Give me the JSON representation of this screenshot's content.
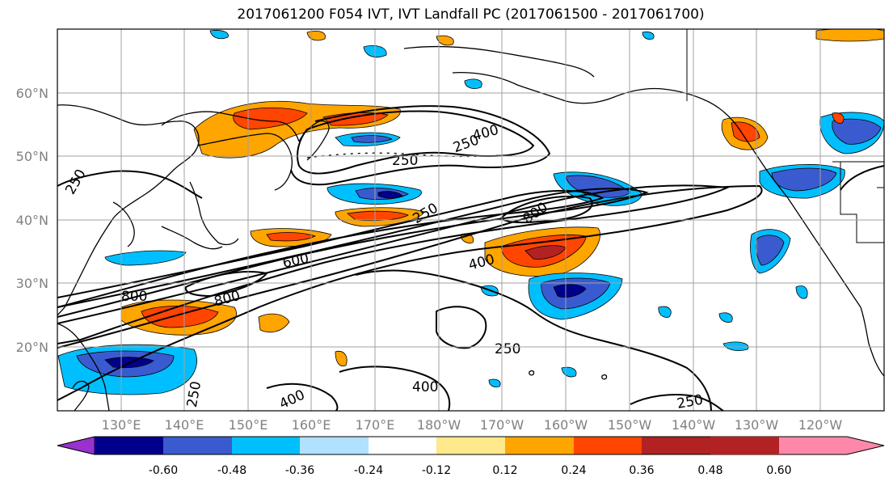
{
  "title": "2017061200 F054 IVT, IVT Landfall PC (2017061500 - 2017061700)",
  "lat_labels": [
    "60°N",
    "50°N",
    "40°N",
    "30°N",
    "20°N"
  ],
  "lon_labels": [
    "130°E",
    "140°E",
    "150°E",
    "160°E",
    "170°E",
    "180°W",
    "170°W",
    "160°W",
    "150°W",
    "140°W",
    "130°W",
    "120°W"
  ],
  "colorbar": {
    "ticks": [
      "-0.60",
      "-0.48",
      "-0.36",
      "-0.24",
      "-0.12",
      "0.12",
      "0.24",
      "0.36",
      "0.48",
      "0.60"
    ],
    "colors": [
      "#9932cc",
      "#00008b",
      "#3a5bcf",
      "#00bfff",
      "#b0e2ff",
      "#ffffff",
      "#ffe98a",
      "#ffa500",
      "#ff4500",
      "#b22222",
      "#ff88aa"
    ]
  },
  "contour_labels": [
    "250",
    "250",
    "400",
    "250",
    "800",
    "600",
    "400",
    "800",
    "800",
    "250",
    "400",
    "250",
    "400",
    "250",
    "250"
  ]
}
